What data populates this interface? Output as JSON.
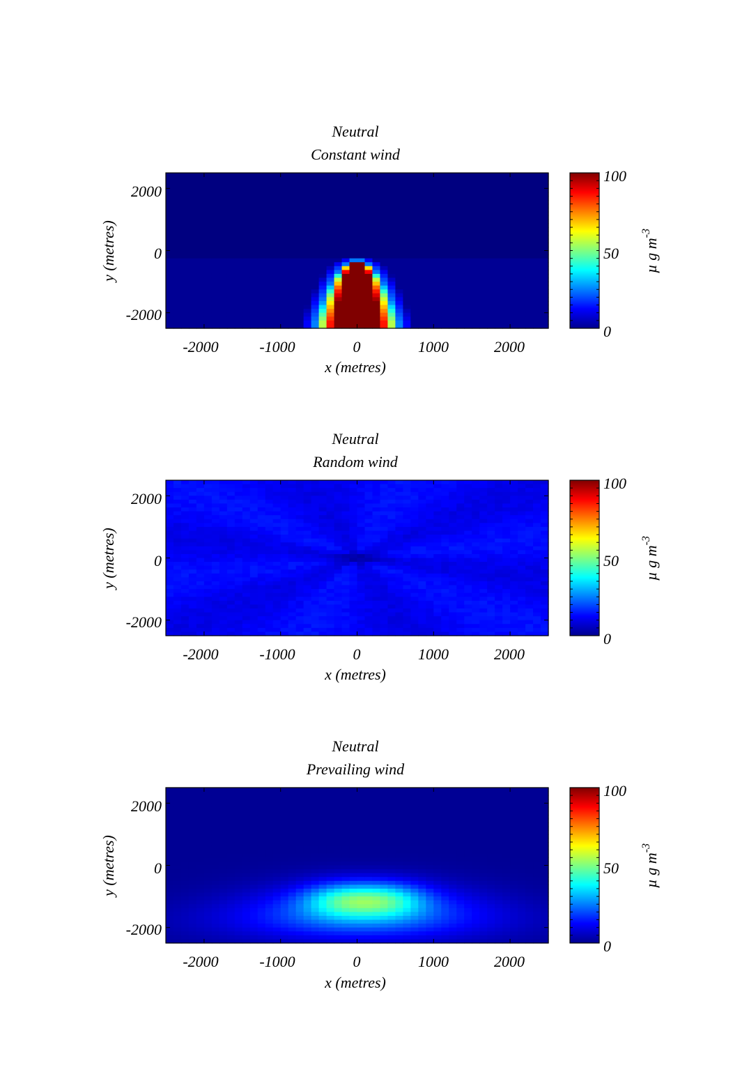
{
  "chart_data": [
    {
      "type": "heatmap",
      "id": "constant",
      "title_line1": "Neutral",
      "title_line2": "Constant wind",
      "xlabel": "x (metres)",
      "ylabel": "y (metres)",
      "xlim": [
        -2500,
        2500
      ],
      "ylim": [
        -2500,
        2500
      ],
      "xticks": [
        -2000,
        -1000,
        0,
        1000,
        2000
      ],
      "yticks": [
        -2000,
        0,
        2000
      ],
      "pattern": "Narrow plume centred on x = 0 extending from y = -2500 up to about y = -300; core values at the 100 maximum, edges falling off quickly.",
      "colorbar": {
        "min": 0,
        "max": 100,
        "ticks": [
          0,
          50,
          100
        ],
        "label_base": "µ g m",
        "label_exp": "-3"
      }
    },
    {
      "type": "heatmap",
      "id": "random",
      "title_line1": "Neutral",
      "title_line2": "Random wind",
      "xlabel": "x (metres)",
      "ylabel": "y (metres)",
      "xlim": [
        -2500,
        2500
      ],
      "ylim": [
        -2500,
        2500
      ],
      "xticks": [
        -2000,
        -1000,
        0,
        1000,
        2000
      ],
      "yticks": [
        -2000,
        0,
        2000
      ],
      "pattern": "Nearly uniform low field around 10-15, with a darker low-concentration ellipse (about 2-5) centred on the origin.",
      "colorbar": {
        "min": 0,
        "max": 100,
        "ticks": [
          0,
          50,
          100
        ],
        "label_base": "µ g m",
        "label_exp": "-3"
      }
    },
    {
      "type": "heatmap",
      "id": "prevailing",
      "title_line1": "Neutral",
      "title_line2": "Prevailing wind",
      "xlabel": "x (metres)",
      "ylabel": "y (metres)",
      "xlim": [
        -2500,
        2500
      ],
      "ylim": [
        -2500,
        2500
      ],
      "xticks": [
        -2000,
        -1000,
        0,
        1000,
        2000
      ],
      "yticks": [
        -2000,
        0,
        2000
      ],
      "pattern": "Broad plume in the lower half; two maxima near x = -200 and x = 400 at y = -1100 reaching about 40-45, background near 2.",
      "colorbar": {
        "min": 0,
        "max": 100,
        "ticks": [
          0,
          50,
          100
        ],
        "label_base": "µ g m",
        "label_exp": "-3"
      }
    }
  ]
}
